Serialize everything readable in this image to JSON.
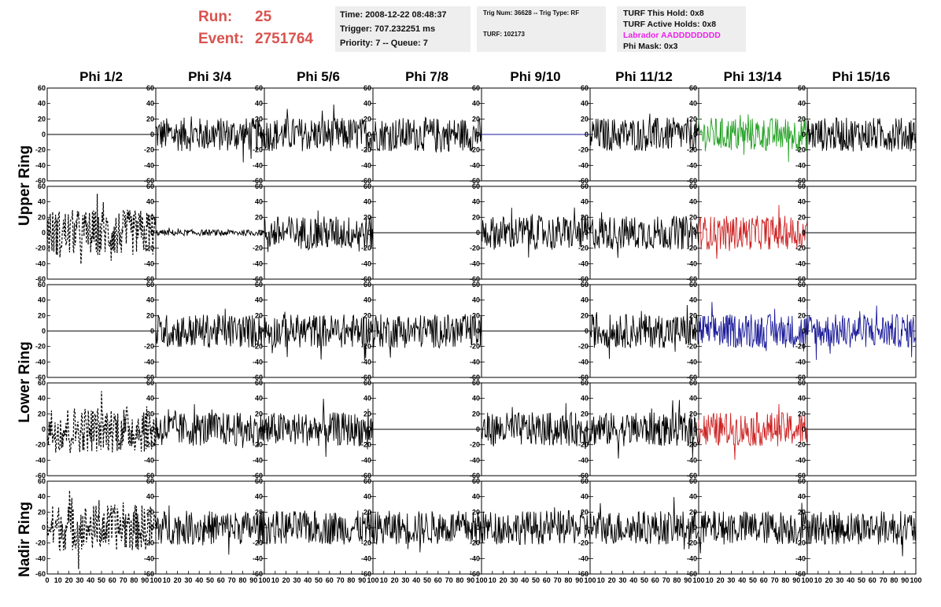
{
  "header": {
    "run_label": "Run:",
    "run_value": "25",
    "event_label": "Event:",
    "event_value": "2751764",
    "time": "Time: 2008-12-22 08:48:37",
    "trigger": "Trigger: 707.232251 ms",
    "priority": "Priority: 7 -- Queue: 7",
    "trig_num": "Trig Num: 36628 -- Trig Type: RF",
    "turf": "TURF: 102173",
    "turf_this_hold": "TURF This Hold: 0x8",
    "turf_active_holds": "TURF Active Holds: 0x8",
    "labrador": "Labrador AADDDDDDDD",
    "phi_mask": "Phi Mask: 0x3"
  },
  "colors": {
    "run_text": "#d9534f",
    "labrador_text": "#ee22ee",
    "trace_black": "#000000",
    "trace_green": "#22a022",
    "trace_red": "#cc2222",
    "trace_blue": "#1a1a99",
    "box_bg": "#eeeeee"
  },
  "chart_data": {
    "type": "line",
    "columns": [
      "Phi 1/2",
      "Phi 3/4",
      "Phi 5/6",
      "Phi 7/8",
      "Phi 9/10",
      "Phi 11/12",
      "Phi 13/14",
      "Phi 15/16"
    ],
    "rows": [
      {
        "label": "Upper Ring",
        "row_index": 0
      },
      {
        "label": "Upper Ring",
        "row_index": 1
      },
      {
        "label": "Lower Ring",
        "row_index": 2
      },
      {
        "label": "Lower Ring",
        "row_index": 3
      },
      {
        "label": "Nadir Ring",
        "row_index": 4
      }
    ],
    "ring_labels": [
      "Upper Ring",
      "Lower Ring",
      "Nadir Ring"
    ],
    "xlim": [
      0,
      100
    ],
    "ylim": [
      -60,
      60
    ],
    "y_ticks": [
      -60,
      -40,
      -20,
      0,
      20,
      40,
      60
    ],
    "x_ticks": [
      0,
      10,
      20,
      30,
      40,
      50,
      60,
      70,
      80,
      90,
      100
    ],
    "panels": [
      [
        "flat",
        "noise-black",
        "noise-black",
        "noise-black",
        "flat-blue",
        "noise-black",
        "noise-green",
        "noise-black"
      ],
      [
        "dashed",
        "small-black",
        "noise-black",
        "flat",
        "noise-black",
        "noise-black",
        "noise-red",
        "flat"
      ],
      [
        "flat",
        "noise-black",
        "noise-black",
        "noise-black",
        "flat",
        "noise-black",
        "noise-blue",
        "noise-blue"
      ],
      [
        "dashed",
        "noise-black",
        "noise-black",
        "flat",
        "noise-black",
        "noise-black",
        "noise-red",
        "flat"
      ],
      [
        "dashed",
        "noise-black",
        "noise-black",
        "noise-black",
        "noise-black",
        "noise-black",
        "noise-black",
        "noise-black"
      ]
    ]
  }
}
